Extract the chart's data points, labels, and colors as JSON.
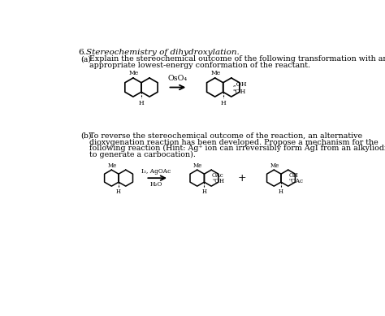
{
  "bg_color": "#ffffff",
  "text_color": "#000000",
  "title_num": "6.",
  "title_text": "Stereochemistry of dihydroxylation.",
  "part_a_label": "(a)",
  "part_a_line1": "Explain the stereochemical outcome of the following transformation with an",
  "part_a_line2": "appropriate lowest-energy conformation of the reactant.",
  "part_b_label": "(b)",
  "part_b_line1": "To reverse the stereochemical outcome of the reaction, an alternative",
  "part_b_line2": "dioxygenation reaction has been developed. Propose a mechanism for the",
  "part_b_line3": "following reaction (Hint: Ag⁺ ion can irreversibly form AgI from an alkyliodide",
  "part_b_line4": "to generate a carbocation).",
  "reagent_a": "OsO₄",
  "reagent_b1": "I₂, AgOAc",
  "reagent_b2": "H₂O",
  "fs_title": 7.5,
  "fs_body": 6.8,
  "fs_mol": 5.5,
  "fs_plus": 9
}
